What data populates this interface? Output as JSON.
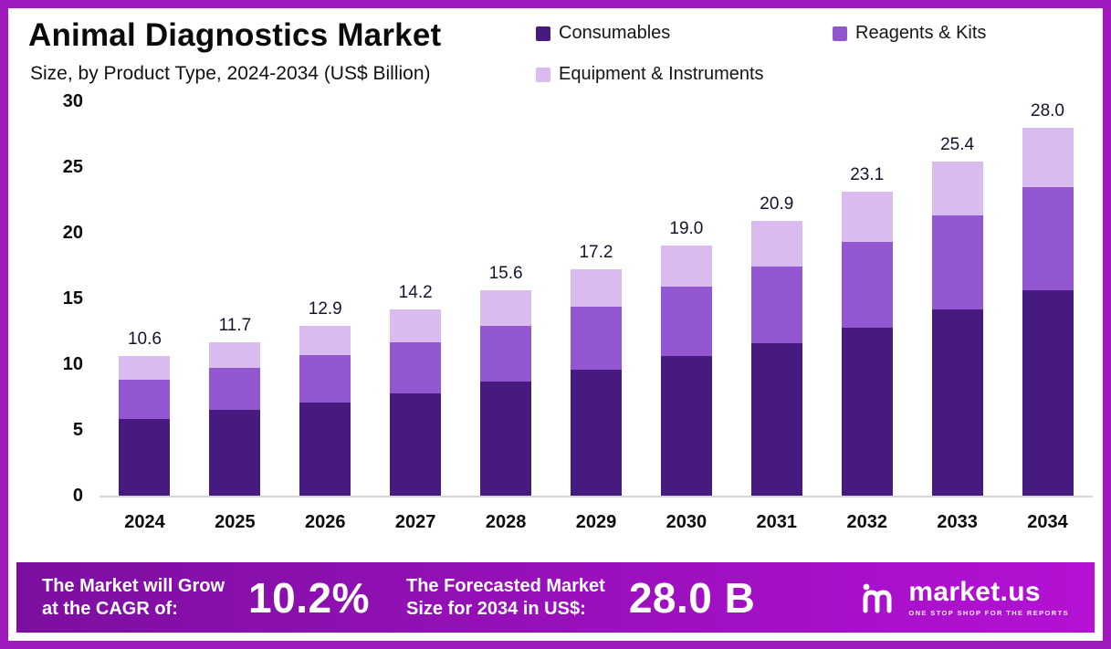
{
  "frame": {
    "border_color": "#A019BC"
  },
  "header": {
    "title": "Animal Diagnostics Market",
    "subtitle": "Size, by Product Type, 2024-2034 (US$ Billion)"
  },
  "legend": [
    {
      "label": "Consumables",
      "color": "#461A7E"
    },
    {
      "label": "Reagents & Kits",
      "color": "#9457D2"
    },
    {
      "label": "Equipment & Instruments",
      "color": "#D9BBF0"
    }
  ],
  "chart_data": {
    "type": "bar",
    "stacked": true,
    "title": "Animal Diagnostics Market Size, by Product Type, 2024-2034 (US$ Billion)",
    "categories": [
      "2024",
      "2025",
      "2026",
      "2027",
      "2028",
      "2029",
      "2030",
      "2031",
      "2032",
      "2033",
      "2034"
    ],
    "series": [
      {
        "name": "Consumables",
        "color": "#461A7E",
        "values": [
          5.8,
          6.5,
          7.1,
          7.8,
          8.7,
          9.6,
          10.6,
          11.6,
          12.8,
          14.2,
          15.6
        ]
      },
      {
        "name": "Reagents & Kits",
        "color": "#9457D2",
        "values": [
          3.0,
          3.2,
          3.6,
          3.9,
          4.2,
          4.8,
          5.3,
          5.8,
          6.5,
          7.1,
          7.9
        ]
      },
      {
        "name": "Equipment & Instruments",
        "color": "#D9BBF0",
        "values": [
          1.8,
          2.0,
          2.2,
          2.5,
          2.7,
          2.8,
          3.1,
          3.5,
          3.8,
          4.1,
          4.5
        ]
      }
    ],
    "totals": [
      "10.6",
      "11.7",
      "12.9",
      "14.2",
      "15.6",
      "17.2",
      "19.0",
      "20.9",
      "23.1",
      "25.4",
      "28.0"
    ],
    "xlabel": "",
    "ylabel": "",
    "ylim": [
      0,
      30
    ],
    "yticks": [
      0,
      5,
      10,
      15,
      20,
      25,
      30
    ],
    "grid": false,
    "legend_position": "top-right"
  },
  "footer": {
    "gradient": [
      "#7C0FA0",
      "#B411D4"
    ],
    "cagr_label_line1": "The Market will Grow",
    "cagr_label_line2": "at the CAGR of:",
    "cagr_value": "10.2%",
    "forecast_label_line1": "The Forecasted Market",
    "forecast_label_line2": "Size for 2034 in US$:",
    "forecast_value": "28.0 B",
    "brand": "market.us",
    "tagline": "ONE STOP SHOP FOR THE REPORTS"
  }
}
